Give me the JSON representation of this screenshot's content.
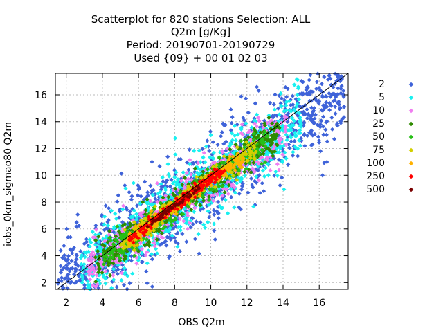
{
  "chart_data": {
    "type": "scatter",
    "title_lines": [
      "Scatterplot for  820 stations Selection: ALL",
      "Q2m [g/Kg]",
      "Period: 20190701-20190729",
      "Used {09} + 00 01 02 03"
    ],
    "xlabel": "OBS Q2m",
    "ylabel": "iobs_0km_sigmao80 Q2m",
    "xlim": [
      1.4,
      17.6
    ],
    "ylim": [
      1.5,
      17.6
    ],
    "x_ticks": [
      2,
      4,
      6,
      8,
      10,
      12,
      14,
      16
    ],
    "y_ticks": [
      2,
      4,
      6,
      8,
      10,
      12,
      14,
      16
    ],
    "grid": true,
    "diagonal_reference_line": true,
    "legend_position": "right",
    "series": [
      {
        "name": "2",
        "color": "#3f63d9",
        "symbol": "diamond"
      },
      {
        "name": "5",
        "color": "#19f0f0",
        "symbol": "diamond"
      },
      {
        "name": "10",
        "color": "#f07ef0",
        "symbol": "diamond"
      },
      {
        "name": "25",
        "color": "#2f8b00",
        "symbol": "diamond"
      },
      {
        "name": "50",
        "color": "#27bf17",
        "symbol": "diamond"
      },
      {
        "name": "75",
        "color": "#d3cf00",
        "symbol": "diamond"
      },
      {
        "name": "100",
        "color": "#ffb100",
        "symbol": "diamond"
      },
      {
        "name": "250",
        "color": "#ff0000",
        "symbol": "diamond"
      },
      {
        "name": "500",
        "color": "#7a0000",
        "symbol": "diamond"
      }
    ]
  }
}
